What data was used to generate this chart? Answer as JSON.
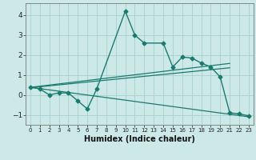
{
  "title": "",
  "xlabel": "Humidex (Indice chaleur)",
  "xlim": [
    -0.5,
    23.5
  ],
  "ylim": [
    -1.5,
    4.6
  ],
  "yticks": [
    -1,
    0,
    1,
    2,
    3,
    4
  ],
  "xticks": [
    0,
    1,
    2,
    3,
    4,
    5,
    6,
    7,
    8,
    9,
    10,
    11,
    12,
    13,
    14,
    15,
    16,
    17,
    18,
    19,
    20,
    21,
    22,
    23
  ],
  "bg_color": "#cce9e8",
  "grid_color": "#a8cece",
  "line_color": "#1a7a6e",
  "lines": [
    {
      "x": [
        0,
        1,
        2,
        3,
        4,
        5,
        6,
        7,
        10,
        11,
        12,
        14,
        15,
        16,
        17,
        18,
        19,
        20,
        21,
        22,
        23
      ],
      "y": [
        0.4,
        0.3,
        0.0,
        0.1,
        0.1,
        -0.3,
        -0.7,
        0.3,
        4.2,
        3.0,
        2.6,
        2.6,
        1.4,
        1.9,
        1.85,
        1.6,
        1.4,
        0.9,
        -0.9,
        -0.95,
        -1.05
      ],
      "marker": "D",
      "markersize": 2.5,
      "linewidth": 1.0
    },
    {
      "x": [
        0,
        21
      ],
      "y": [
        0.38,
        1.58
      ],
      "marker": null,
      "linewidth": 0.9
    },
    {
      "x": [
        0,
        21
      ],
      "y": [
        0.36,
        1.36
      ],
      "marker": null,
      "linewidth": 0.9
    },
    {
      "x": [
        0,
        23
      ],
      "y": [
        0.38,
        -1.1
      ],
      "marker": null,
      "linewidth": 0.9
    }
  ]
}
